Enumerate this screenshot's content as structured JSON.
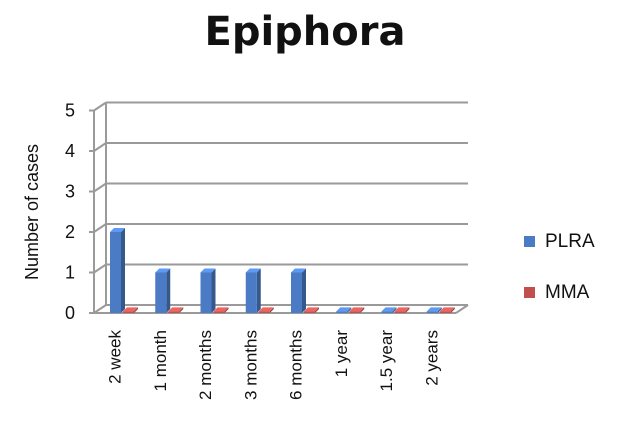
{
  "chart_data": {
    "type": "bar",
    "title": "Epiphora",
    "xlabel": "",
    "ylabel": "Number of cases",
    "ylim": [
      0,
      5
    ],
    "yticks": [
      0,
      1,
      2,
      3,
      4,
      5
    ],
    "grid": true,
    "legend_position": "right",
    "categories": [
      "2 week",
      "1 month",
      "2 months",
      "3 months",
      "6 months",
      "1 year",
      "1.5 year",
      "2 years"
    ],
    "series": [
      {
        "name": "PLRA",
        "color": "#4a7bc4",
        "values": [
          2,
          1,
          1,
          1,
          1,
          0,
          0,
          0
        ]
      },
      {
        "name": "MMA",
        "color": "#c0504d",
        "values": [
          0,
          0,
          0,
          0,
          0,
          0,
          0,
          0
        ]
      }
    ]
  }
}
